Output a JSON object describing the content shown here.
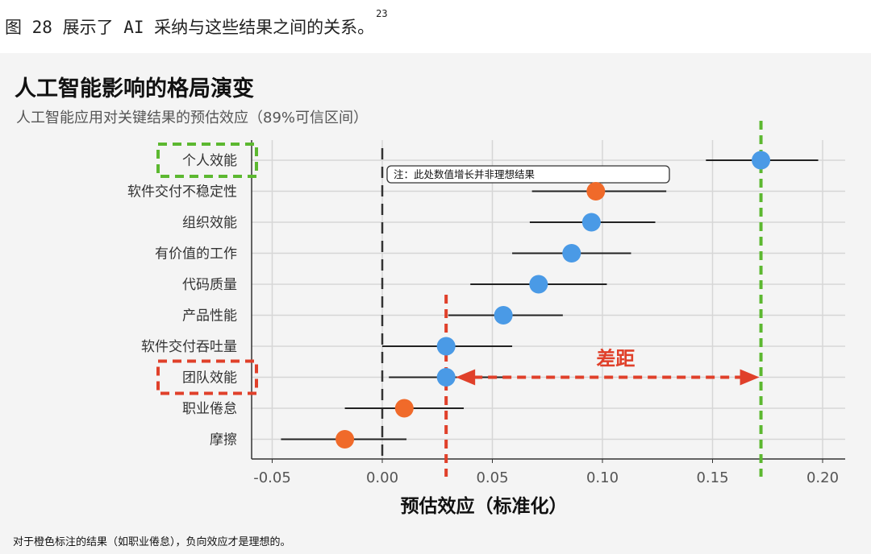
{
  "caption": {
    "text": "图 28 展示了 AI 采纳与这些结果之间的关系。",
    "footnote_ref": "23"
  },
  "chart": {
    "title": "人工智能影响的格局演变",
    "subtitle": "人工智能应用对关键结果的预估效应（89%可信区间）",
    "footnote": "对于橙色标注的结果（如职业倦怠），负向效应才是理想的。"
  },
  "chart_data": {
    "type": "scatter",
    "subtype": "forest-plot",
    "xlabel": "预估效应（标准化）",
    "xlim": [
      -0.06,
      0.21
    ],
    "xticks": [
      -0.05,
      0.0,
      0.05,
      0.1,
      0.15,
      0.2
    ],
    "xtick_labels": [
      "-0.05",
      "0.00",
      "0.05",
      "0.10",
      "0.15",
      "0.20"
    ],
    "grid": true,
    "colors": {
      "desirable_positive": "#4a9ae6",
      "desirable_negative": "#f06a2a",
      "highlight_green": "#5cb830",
      "highlight_red": "#e0402a"
    },
    "rows": [
      {
        "label": "个人效能",
        "estimate": 0.172,
        "low": 0.147,
        "high": 0.198,
        "color": "blue"
      },
      {
        "label": "软件交付不稳定性",
        "estimate": 0.097,
        "low": 0.068,
        "high": 0.129,
        "color": "orange"
      },
      {
        "label": "组织效能",
        "estimate": 0.095,
        "low": 0.067,
        "high": 0.124,
        "color": "blue"
      },
      {
        "label": "有价值的工作",
        "estimate": 0.086,
        "low": 0.059,
        "high": 0.113,
        "color": "blue"
      },
      {
        "label": "代码质量",
        "estimate": 0.071,
        "low": 0.04,
        "high": 0.102,
        "color": "blue"
      },
      {
        "label": "产品性能",
        "estimate": 0.055,
        "low": 0.03,
        "high": 0.082,
        "color": "blue"
      },
      {
        "label": "软件交付吞吐量",
        "estimate": 0.029,
        "low": 0.0,
        "high": 0.059,
        "color": "blue"
      },
      {
        "label": "团队效能",
        "estimate": 0.029,
        "low": 0.003,
        "high": 0.055,
        "color": "blue"
      },
      {
        "label": "职业倦怠",
        "estimate": 0.01,
        "low": -0.017,
        "high": 0.037,
        "color": "orange"
      },
      {
        "label": "摩擦",
        "estimate": -0.017,
        "low": -0.046,
        "high": 0.011,
        "color": "orange"
      }
    ],
    "annotations": {
      "note_text": "注：此处数值增长并非理想结果",
      "gap_label": "差距",
      "green_box_row": "个人效能",
      "red_box_row": "团队效能",
      "green_line_x": 0.172,
      "red_line_x": 0.029,
      "reference_line_x": 0.0
    }
  }
}
